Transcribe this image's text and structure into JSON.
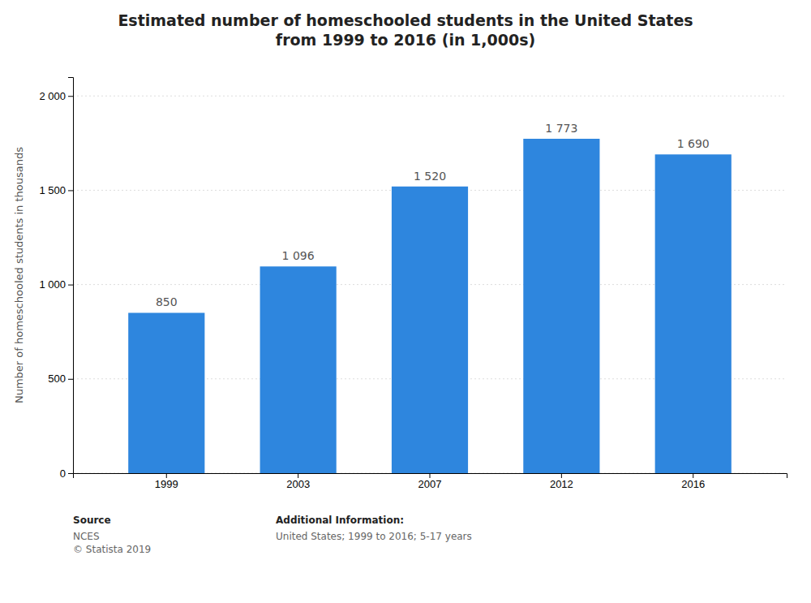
{
  "chart_data": {
    "type": "bar",
    "title": "Estimated number of homeschooled students in the United States\nfrom 1999 to 2016 (in 1,000s)",
    "y_label": "Number of homeschooled students in thousands",
    "categories": [
      "1999",
      "2003",
      "2007",
      "2012",
      "2016"
    ],
    "values": [
      850,
      1096,
      1520,
      1773,
      1690
    ],
    "value_labels": [
      "850",
      "1 096",
      "1 520",
      "1 773",
      "1 690"
    ],
    "data_labels": true,
    "color": "#2e86de",
    "ylim": [
      0,
      2100
    ],
    "yticks": [
      0,
      500,
      {
        "value": 1000,
        "label": "1 000"
      },
      {
        "value": 1500,
        "label": "1 500"
      },
      {
        "value": 2000,
        "label": "2 000"
      }
    ],
    "grid": true,
    "annotations": [
      "Source",
      "NCES\n© Statista 2019",
      "Additional Information:",
      "United States; 1999 to 2016; 5-17 years"
    ]
  }
}
